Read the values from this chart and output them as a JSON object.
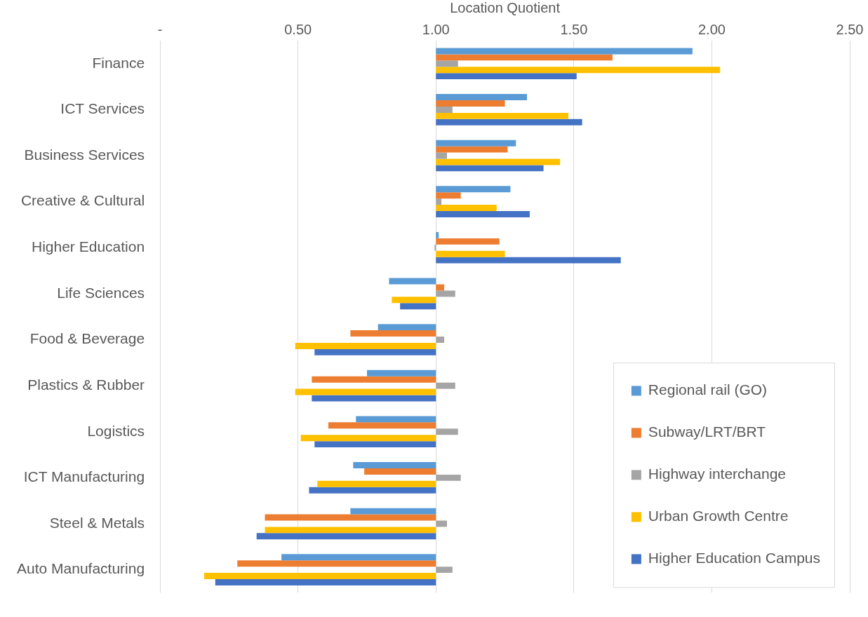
{
  "chart_data": {
    "type": "bar",
    "orientation": "horizontal",
    "xlabel": "Location Quotient",
    "categories": [
      "Finance",
      "ICT Services",
      "Business Services",
      "Creative & Cultural",
      "Higher Education",
      "Life Sciences",
      "Food & Beverage",
      "Plastics & Rubber",
      "Logistics",
      "ICT Manufacturing",
      "Steel & Metals",
      "Auto Manufacturing"
    ],
    "series": [
      {
        "name": "Regional rail (GO)",
        "color": "#5b9bd5",
        "base": [
          1,
          1,
          1,
          1,
          1,
          1,
          1,
          1,
          1,
          1,
          1,
          1
        ],
        "values": [
          0.93,
          0.33,
          0.29,
          0.27,
          0.01,
          -0.17,
          -0.21,
          -0.25,
          -0.29,
          -0.3,
          -0.31,
          -0.56
        ]
      },
      {
        "name": "Subway/LRT/BRT",
        "color": "#ed7d31",
        "base": [
          1,
          1,
          1,
          1,
          1,
          1,
          1,
          1,
          1,
          1,
          1,
          1
        ],
        "values": [
          0.64,
          0.25,
          0.26,
          0.09,
          0.23,
          0.03,
          -0.31,
          -0.45,
          -0.39,
          -0.26,
          -0.62,
          -0.72
        ]
      },
      {
        "name": "Highway interchange",
        "color": "#a5a5a5",
        "base": [
          1,
          1,
          1,
          1,
          1,
          1,
          1,
          1,
          1,
          1,
          1,
          1
        ],
        "values": [
          0.08,
          0.06,
          0.04,
          0.02,
          -0.005,
          0.07,
          0.03,
          0.07,
          0.08,
          0.09,
          0.04,
          0.06
        ]
      },
      {
        "name": "Urban Growth Centre",
        "color": "#ffc000",
        "base": [
          1,
          1,
          1,
          1,
          1,
          1,
          1,
          1,
          1,
          1,
          1,
          1
        ],
        "values": [
          1.03,
          0.48,
          0.45,
          0.22,
          0.25,
          -0.16,
          -0.51,
          -0.51,
          -0.49,
          -0.43,
          -0.62,
          -0.84
        ]
      },
      {
        "name": "Higher Education Campus",
        "color": "#4472c4",
        "base": [
          1,
          1,
          1,
          1,
          1,
          1,
          1,
          1,
          1,
          1,
          1,
          1
        ],
        "values": [
          0.51,
          0.53,
          0.39,
          0.34,
          0.67,
          -0.13,
          -0.44,
          -0.45,
          -0.44,
          -0.46,
          -0.65,
          -0.8
        ]
      }
    ],
    "xlim": [
      0,
      2.5
    ],
    "xticks": [
      {
        "value": 0,
        "label": "-"
      },
      {
        "value": 0.5,
        "label": "0.50"
      },
      {
        "value": 1,
        "label": "1.00"
      },
      {
        "value": 1.5,
        "label": "1.50"
      },
      {
        "value": 2,
        "label": "2.00"
      },
      {
        "value": 2.5,
        "label": "2.50"
      }
    ],
    "grid": "x",
    "legend": "bottom right"
  }
}
